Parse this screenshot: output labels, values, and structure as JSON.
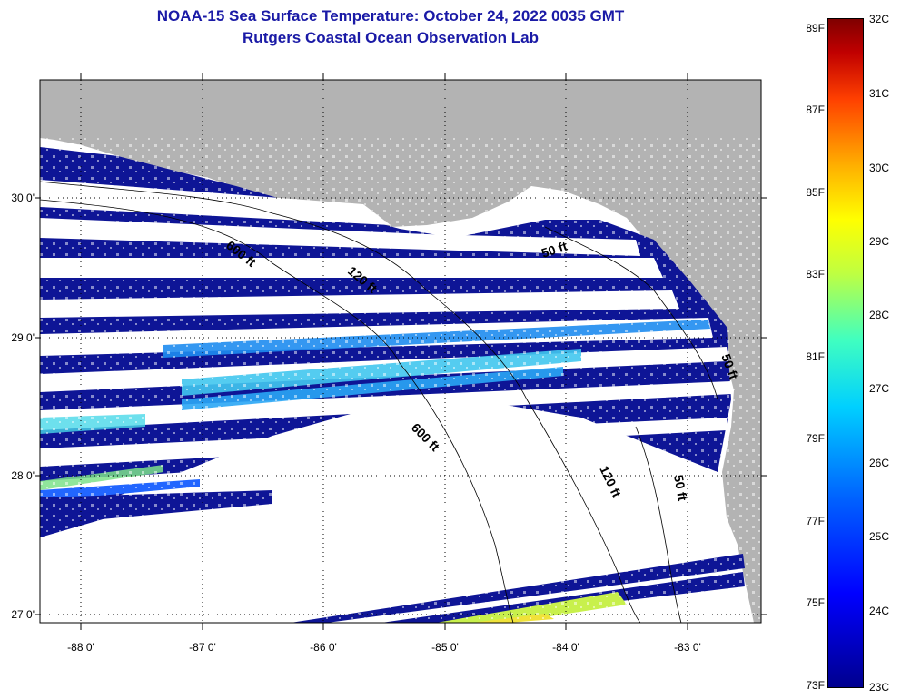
{
  "title": {
    "line1": "NOAA-15 Sea Surface Temperature:  October 24, 2022 0035 GMT",
    "line2": "Rutgers Coastal Ocean Observation Lab"
  },
  "map": {
    "lat_labels": [
      "30 0'",
      "29 0'",
      "28 0'",
      "27 0'"
    ],
    "lon_labels": [
      "-88 0'",
      "-87 0'",
      "-86 0'",
      "-85 0'",
      "-84 0'",
      "-83 0'"
    ],
    "contour_labels": [
      "600 ft",
      "120 ft",
      "50 ft",
      "50 ft",
      "600 ft",
      "120 ft",
      "50 ft"
    ],
    "colors": {
      "land": "#b3b3b3",
      "water_dark": "#10109a",
      "no_data": "#ffffff"
    }
  },
  "colorbar": {
    "fahrenheit": [
      "89F",
      "87F",
      "85F",
      "83F",
      "81F",
      "79F",
      "77F",
      "75F",
      "73F"
    ],
    "celsius": [
      "32C",
      "31C",
      "30C",
      "29C",
      "28C",
      "27C",
      "26C",
      "25C",
      "24C",
      "23C"
    ]
  }
}
